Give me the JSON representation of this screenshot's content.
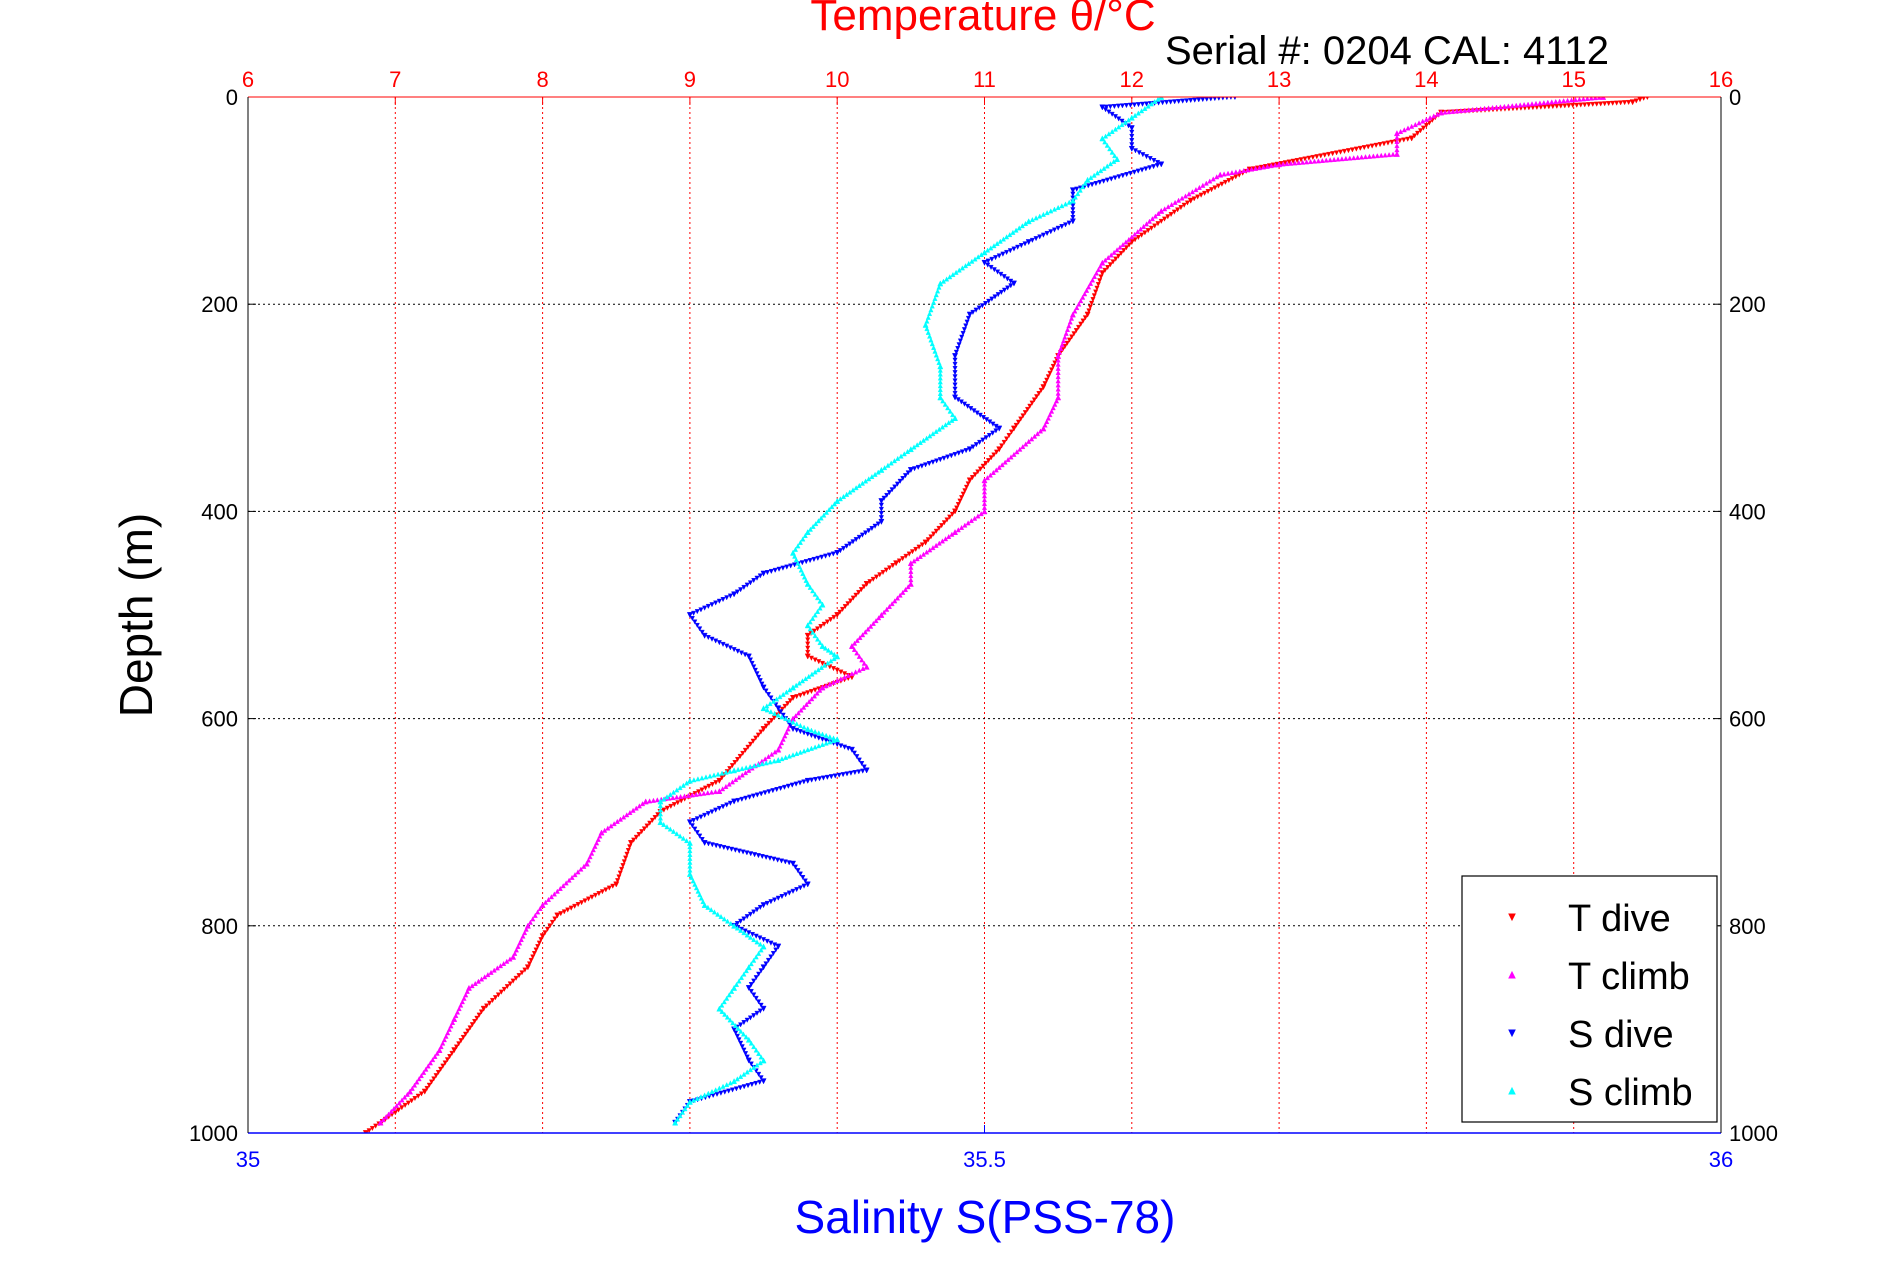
{
  "colors": {
    "t_dive": "#ff0000",
    "t_climb": "#ff00ff",
    "s_dive": "#0000ff",
    "s_climb": "#00ffff",
    "temp_axis": "#ff0000",
    "sal_axis": "#0000ff",
    "grid_black": "#000000",
    "grid_red": "#ff0000"
  },
  "chart_data": {
    "type": "scatter",
    "title": "Temperature θ/°C",
    "subtitle": "Serial #: 0204  CAL: 4112",
    "ylabel": "Depth (m)",
    "xlabel": "Salinity S(PSS-78)",
    "temp_axis": {
      "range": [
        6,
        16
      ],
      "ticks": [
        "6",
        "7",
        "8",
        "9",
        "10",
        "11",
        "12",
        "13",
        "14",
        "15",
        "16"
      ]
    },
    "sal_axis": {
      "range": [
        35,
        36
      ],
      "ticks": [
        "35",
        "35.5",
        "36"
      ]
    },
    "depth_axis": {
      "range": [
        0,
        1000
      ],
      "reversed": true,
      "ticks_left": [
        "0",
        "200",
        "400",
        "600",
        "800",
        "1000"
      ],
      "ticks_right": [
        "0",
        "200",
        "400",
        "600",
        "800",
        "1000"
      ]
    },
    "grid": true,
    "legend_position": "bottom-right",
    "legend": [
      "T dive",
      "T climb",
      "S dive",
      "S climb"
    ],
    "series": [
      {
        "name": "T dive",
        "axis": "temperature",
        "marker": "triangle-down",
        "points": [
          [
            15.5,
            0
          ],
          [
            15.4,
            5
          ],
          [
            14.1,
            15
          ],
          [
            13.9,
            40
          ],
          [
            12.8,
            70
          ],
          [
            12.4,
            100
          ],
          [
            12.0,
            140
          ],
          [
            11.8,
            170
          ],
          [
            11.7,
            210
          ],
          [
            11.5,
            250
          ],
          [
            11.4,
            280
          ],
          [
            11.2,
            320
          ],
          [
            11.1,
            340
          ],
          [
            10.9,
            370
          ],
          [
            10.8,
            400
          ],
          [
            10.6,
            430
          ],
          [
            10.4,
            450
          ],
          [
            10.2,
            470
          ],
          [
            10.0,
            500
          ],
          [
            9.8,
            520
          ],
          [
            9.8,
            540
          ],
          [
            10.1,
            560
          ],
          [
            9.7,
            580
          ],
          [
            9.5,
            610
          ],
          [
            9.2,
            660
          ],
          [
            8.8,
            690
          ],
          [
            8.6,
            720
          ],
          [
            8.5,
            760
          ],
          [
            8.1,
            790
          ],
          [
            8.0,
            810
          ],
          [
            7.9,
            840
          ],
          [
            7.6,
            880
          ],
          [
            7.4,
            920
          ],
          [
            7.2,
            960
          ],
          [
            7.0,
            980
          ],
          [
            6.8,
            1000
          ]
        ]
      },
      {
        "name": "T climb",
        "axis": "temperature",
        "marker": "triangle-up",
        "points": [
          [
            15.2,
            0
          ],
          [
            14.1,
            15
          ],
          [
            13.8,
            35
          ],
          [
            13.8,
            55
          ],
          [
            13.0,
            65
          ],
          [
            12.6,
            75
          ],
          [
            12.2,
            110
          ],
          [
            11.8,
            160
          ],
          [
            11.6,
            210
          ],
          [
            11.5,
            250
          ],
          [
            11.5,
            290
          ],
          [
            11.4,
            320
          ],
          [
            11.0,
            370
          ],
          [
            11.0,
            400
          ],
          [
            10.8,
            420
          ],
          [
            10.5,
            450
          ],
          [
            10.5,
            470
          ],
          [
            10.3,
            500
          ],
          [
            10.1,
            530
          ],
          [
            10.2,
            550
          ],
          [
            9.9,
            570
          ],
          [
            9.7,
            600
          ],
          [
            9.6,
            630
          ],
          [
            9.2,
            670
          ],
          [
            8.7,
            680
          ],
          [
            8.4,
            710
          ],
          [
            8.3,
            740
          ],
          [
            8.0,
            780
          ],
          [
            7.9,
            800
          ],
          [
            7.8,
            830
          ],
          [
            7.5,
            860
          ],
          [
            7.4,
            890
          ],
          [
            7.3,
            920
          ],
          [
            7.1,
            960
          ],
          [
            6.9,
            990
          ]
        ]
      },
      {
        "name": "S dive",
        "axis": "salinity",
        "marker": "triangle-down",
        "points": [
          [
            35.67,
            0
          ],
          [
            35.58,
            10
          ],
          [
            35.6,
            30
          ],
          [
            35.6,
            50
          ],
          [
            35.62,
            65
          ],
          [
            35.56,
            90
          ],
          [
            35.56,
            120
          ],
          [
            35.53,
            140
          ],
          [
            35.5,
            160
          ],
          [
            35.52,
            180
          ],
          [
            35.49,
            210
          ],
          [
            35.48,
            250
          ],
          [
            35.48,
            290
          ],
          [
            35.51,
            320
          ],
          [
            35.49,
            340
          ],
          [
            35.45,
            360
          ],
          [
            35.43,
            390
          ],
          [
            35.43,
            410
          ],
          [
            35.4,
            440
          ],
          [
            35.35,
            460
          ],
          [
            35.33,
            480
          ],
          [
            35.3,
            500
          ],
          [
            35.31,
            520
          ],
          [
            35.34,
            540
          ],
          [
            35.35,
            570
          ],
          [
            35.36,
            590
          ],
          [
            35.37,
            610
          ],
          [
            35.41,
            630
          ],
          [
            35.42,
            650
          ],
          [
            35.38,
            660
          ],
          [
            35.33,
            680
          ],
          [
            35.3,
            700
          ],
          [
            35.31,
            720
          ],
          [
            35.37,
            740
          ],
          [
            35.38,
            760
          ],
          [
            35.35,
            780
          ],
          [
            35.33,
            800
          ],
          [
            35.36,
            820
          ],
          [
            35.35,
            840
          ],
          [
            35.34,
            860
          ],
          [
            35.35,
            880
          ],
          [
            35.33,
            900
          ],
          [
            35.34,
            930
          ],
          [
            35.35,
            950
          ],
          [
            35.3,
            970
          ],
          [
            35.29,
            990
          ]
        ]
      },
      {
        "name": "S climb",
        "axis": "salinity",
        "marker": "triangle-up",
        "points": [
          [
            35.62,
            0
          ],
          [
            35.6,
            20
          ],
          [
            35.58,
            40
          ],
          [
            35.59,
            60
          ],
          [
            35.57,
            80
          ],
          [
            35.56,
            100
          ],
          [
            35.53,
            120
          ],
          [
            35.5,
            150
          ],
          [
            35.47,
            180
          ],
          [
            35.46,
            220
          ],
          [
            35.47,
            260
          ],
          [
            35.47,
            290
          ],
          [
            35.48,
            310
          ],
          [
            35.45,
            340
          ],
          [
            35.43,
            360
          ],
          [
            35.4,
            390
          ],
          [
            35.38,
            420
          ],
          [
            35.37,
            440
          ],
          [
            35.38,
            470
          ],
          [
            35.39,
            490
          ],
          [
            35.38,
            510
          ],
          [
            35.39,
            530
          ],
          [
            35.4,
            540
          ],
          [
            35.37,
            570
          ],
          [
            35.35,
            590
          ],
          [
            35.38,
            610
          ],
          [
            35.4,
            620
          ],
          [
            35.36,
            640
          ],
          [
            35.33,
            650
          ],
          [
            35.3,
            660
          ],
          [
            35.28,
            680
          ],
          [
            35.28,
            700
          ],
          [
            35.3,
            720
          ],
          [
            35.3,
            750
          ],
          [
            35.31,
            780
          ],
          [
            35.33,
            800
          ],
          [
            35.35,
            820
          ],
          [
            35.34,
            840
          ],
          [
            35.33,
            860
          ],
          [
            35.32,
            880
          ],
          [
            35.34,
            910
          ],
          [
            35.35,
            930
          ],
          [
            35.33,
            950
          ],
          [
            35.3,
            970
          ],
          [
            35.29,
            990
          ]
        ]
      }
    ]
  }
}
